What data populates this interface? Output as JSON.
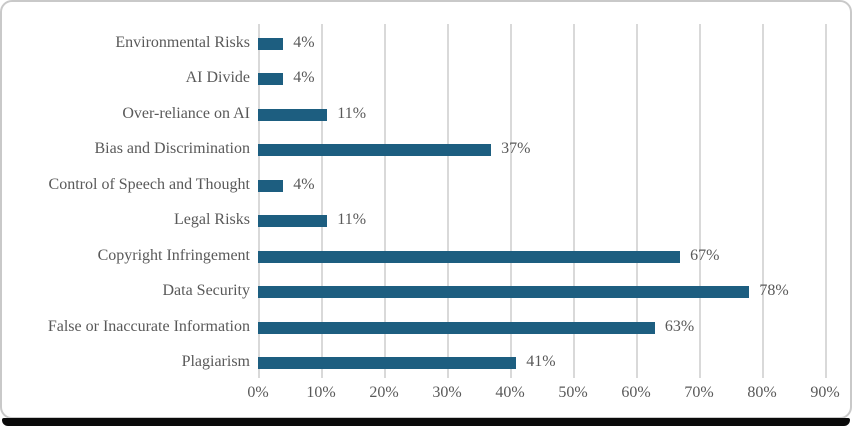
{
  "chart_data": {
    "type": "bar",
    "orientation": "horizontal",
    "title": "",
    "xlabel": "",
    "ylabel": "",
    "categories": [
      "Environmental Risks",
      "AI Divide",
      "Over-reliance on AI",
      "Bias and Discrimination",
      "Control of Speech and Thought",
      "Legal Risks",
      "Copyright Infringement",
      "Data Security",
      "False or Inaccurate Information",
      "Plagiarism"
    ],
    "values": [
      4,
      4,
      11,
      37,
      4,
      11,
      67,
      78,
      63,
      41
    ],
    "data_labels": [
      "4%",
      "4%",
      "11%",
      "37%",
      "4%",
      "11%",
      "67%",
      "78%",
      "63%",
      "41%"
    ],
    "x_ticks": [
      "0%",
      "10%",
      "20%",
      "30%",
      "40%",
      "50%",
      "60%",
      "70%",
      "80%",
      "90%"
    ],
    "xlim": [
      0,
      90
    ],
    "grid": "vertical-only",
    "legend": "none",
    "colors": {
      "bar": "#1d5e80",
      "gridline": "#d9d9d9",
      "text": "#595959",
      "frame_border": "#c9c9c9",
      "bottom_strip": "#0a0a0a",
      "background": "#ffffff"
    }
  }
}
